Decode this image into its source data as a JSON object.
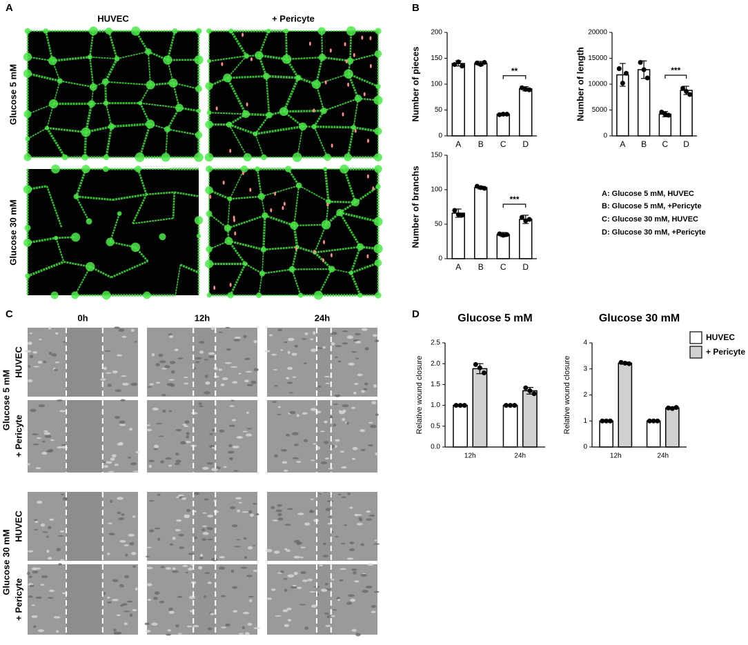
{
  "panels": {
    "a": "A",
    "b": "B",
    "c": "C",
    "d": "D"
  },
  "panel_a": {
    "columns": [
      "HUVEC",
      "+ Pericyte"
    ],
    "rows": [
      "Glucose 5 mM",
      "Glucose 30 mM"
    ]
  },
  "panel_b_legend": [
    "A: Glucose 5 mM, HUVEC",
    "B: Glucose 5 mM, +Pericyte",
    "C: Glucose 30 mM, HUVEC",
    "D: Glucose 30 mM, +Pericyte"
  ],
  "panel_c": {
    "columns": [
      "0h",
      "12h",
      "24h"
    ],
    "groups": [
      "Glucose 5 mM",
      "Glucose 30 mM"
    ],
    "rows": [
      "HUVEC",
      "+ Pericyte"
    ]
  },
  "chart_data": [
    {
      "type": "bar",
      "ylabel": "Number of pieces",
      "categories": [
        "A",
        "B",
        "C",
        "D"
      ],
      "values": [
        140,
        140,
        42,
        91
      ],
      "errors": [
        5,
        4,
        2,
        4
      ],
      "points": [
        [
          138,
          143,
          135
        ],
        [
          141,
          138,
          142
        ],
        [
          41,
          42,
          42
        ],
        [
          93,
          90,
          89
        ]
      ],
      "ylim": [
        0,
        200
      ],
      "yticks": [
        0,
        50,
        100,
        150,
        200
      ],
      "color": "#ffffff",
      "significance": "**"
    },
    {
      "type": "bar",
      "ylabel": "Number of length",
      "categories": [
        "A",
        "B",
        "C",
        "D"
      ],
      "values": [
        11800,
        12800,
        4200,
        8800
      ],
      "errors": [
        2200,
        1700,
        500,
        800
      ],
      "points": [
        [
          13000,
          10200,
          12100
        ],
        [
          14200,
          12800,
          11200
        ],
        [
          4600,
          4200,
          4000
        ],
        [
          9200,
          8600,
          8000
        ]
      ],
      "ylim": [
        0,
        20000
      ],
      "yticks": [
        0,
        5000,
        10000,
        15000,
        20000
      ],
      "color": "#ffffff",
      "significance": "***"
    },
    {
      "type": "bar",
      "ylabel": "Number of branchs",
      "categories": [
        "A",
        "B",
        "C",
        "D"
      ],
      "values": [
        66,
        103,
        35,
        57
      ],
      "errors": [
        6,
        2,
        3,
        6
      ],
      "points": [
        [
          70,
          64,
          63
        ],
        [
          105,
          103,
          102
        ],
        [
          36,
          34,
          35
        ],
        [
          60,
          55,
          57
        ]
      ],
      "ylim": [
        0,
        150
      ],
      "yticks": [
        0,
        50,
        100,
        150
      ],
      "color": "#ffffff",
      "significance": "***"
    },
    {
      "type": "bar",
      "title": "Glucose 5 mM",
      "ylabel": "Relative wound closure",
      "categories": [
        "12h",
        "24h"
      ],
      "series": [
        {
          "name": "HUVEC",
          "color": "#ffffff",
          "values": [
            1.0,
            1.0
          ],
          "errors": [
            0,
            0
          ],
          "points": [
            [
              1,
              1,
              1
            ],
            [
              1,
              1,
              1
            ]
          ]
        },
        {
          "name": "+ Pericyte",
          "color": "#d0d0d0",
          "values": [
            1.88,
            1.35
          ],
          "errors": [
            0.12,
            0.08
          ],
          "points": [
            [
              1.98,
              1.9,
              1.78
            ],
            [
              1.42,
              1.35,
              1.28
            ]
          ]
        }
      ],
      "ylim": [
        0,
        2.5
      ],
      "yticks": [
        {
          "value": 0,
          "label": "0.0"
        },
        0.5,
        {
          "value": 1,
          "label": "1.0"
        },
        1.5,
        {
          "value": 2,
          "label": "2.0"
        },
        2.5
      ],
      "legend": false
    },
    {
      "type": "bar",
      "title": "Glucose 30 mM",
      "ylabel": "Relative wound closure",
      "categories": [
        "12h",
        "24h"
      ],
      "series": [
        {
          "name": "HUVEC",
          "color": "#ffffff",
          "values": [
            1.0,
            1.0
          ],
          "errors": [
            0,
            0
          ],
          "points": [
            [
              1,
              1,
              1
            ],
            [
              1,
              1,
              1
            ]
          ]
        },
        {
          "name": "+ Pericyte",
          "color": "#d0d0d0",
          "values": [
            3.22,
            1.5
          ],
          "errors": [
            0.04,
            0.04
          ],
          "points": [
            [
              3.25,
              3.22,
              3.2
            ],
            [
              1.5,
              1.48,
              1.52
            ]
          ]
        }
      ],
      "ylim": [
        0,
        4
      ],
      "yticks": [
        0,
        1,
        2,
        3,
        4
      ],
      "legend": true
    }
  ]
}
